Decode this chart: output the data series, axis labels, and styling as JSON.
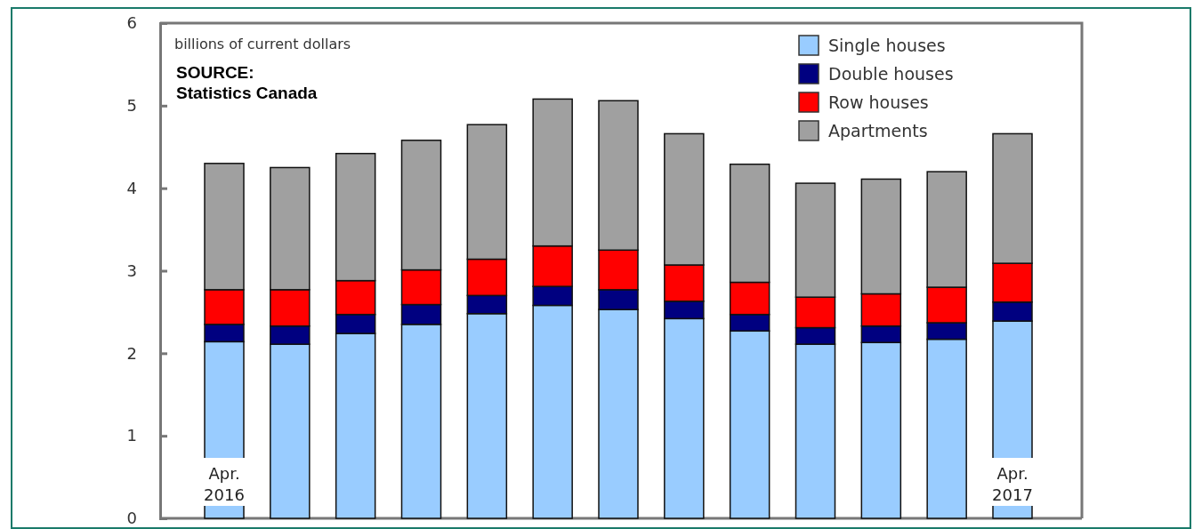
{
  "chart_data": {
    "type": "bar",
    "stacked": true,
    "ylabel": "billions of current dollars",
    "annotations": [
      "SOURCE:\nStatistics Canada"
    ],
    "categories": [
      "Apr.\n2016",
      null,
      null,
      null,
      null,
      null,
      null,
      null,
      null,
      null,
      null,
      null,
      "Apr.\n2017"
    ],
    "series": [
      {
        "name": "Single houses",
        "color": "#99ccff",
        "values": [
          2.14,
          2.11,
          2.24,
          2.35,
          2.48,
          2.58,
          2.53,
          2.42,
          2.27,
          2.11,
          2.13,
          2.17,
          2.39
        ]
      },
      {
        "name": "Double houses",
        "color": "#000080",
        "values": [
          0.21,
          0.22,
          0.23,
          0.24,
          0.22,
          0.23,
          0.24,
          0.21,
          0.2,
          0.2,
          0.2,
          0.2,
          0.23
        ]
      },
      {
        "name": "Row houses",
        "color": "#ff0000",
        "values": [
          0.42,
          0.44,
          0.41,
          0.42,
          0.44,
          0.49,
          0.48,
          0.44,
          0.39,
          0.37,
          0.39,
          0.43,
          0.47
        ]
      },
      {
        "name": "Apartments",
        "color": "#a0a0a0",
        "values": [
          1.53,
          1.48,
          1.54,
          1.57,
          1.63,
          1.78,
          1.81,
          1.59,
          1.43,
          1.38,
          1.39,
          1.4,
          1.57
        ]
      }
    ],
    "ylim": [
      0,
      6
    ],
    "yticks": [
      0,
      1,
      2,
      3,
      4,
      5,
      6
    ],
    "grid": false,
    "legend": "top right"
  }
}
